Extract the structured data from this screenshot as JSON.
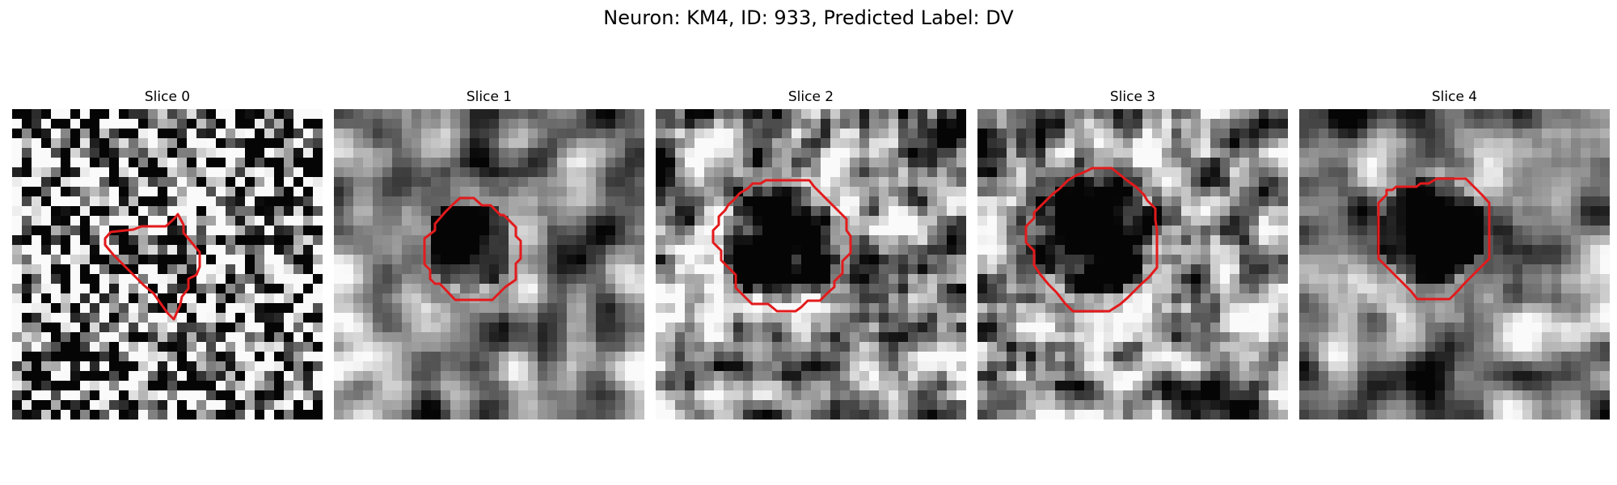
{
  "figure": {
    "title": "Neuron: KM4, ID: 933, Predicted Label: DV"
  },
  "panels": [
    {
      "title": "Slice 0",
      "seed": 11,
      "contrast": 0.55,
      "smooth": 0,
      "dark_center": 0.25
    },
    {
      "title": "Slice 1",
      "seed": 23,
      "contrast": 0.95,
      "smooth": 2,
      "dark_center": 0.85
    },
    {
      "title": "Slice 2",
      "seed": 37,
      "contrast": 0.85,
      "smooth": 1,
      "dark_center": 0.75
    },
    {
      "title": "Slice 3",
      "seed": 51,
      "contrast": 0.8,
      "smooth": 1,
      "dark_center": 0.75
    },
    {
      "title": "Slice 4",
      "seed": 67,
      "contrast": 0.85,
      "smooth": 2,
      "dark_center": 0.8
    }
  ],
  "colors": {
    "contour": "#e31a1c",
    "background": "#ffffff"
  }
}
